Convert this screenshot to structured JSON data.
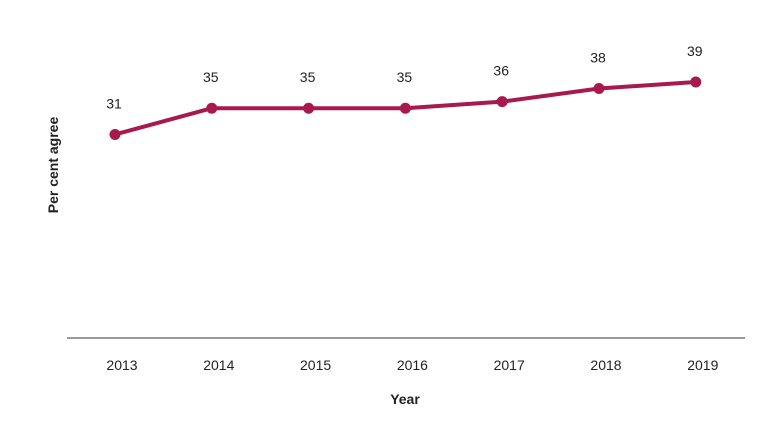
{
  "chart_data": {
    "type": "line",
    "x": [
      "2013",
      "2014",
      "2015",
      "2016",
      "2017",
      "2018",
      "2019"
    ],
    "series": [
      {
        "values": [
          31,
          35,
          35,
          35,
          36,
          38,
          39
        ],
        "color": "#a8194e"
      }
    ],
    "data_labels": [
      "31",
      "35",
      "35",
      "35",
      "36",
      "38",
      "39"
    ],
    "xlabel": "Year",
    "ylabel": "Per cent agree",
    "ylim": [
      0,
      46
    ],
    "grid": false,
    "show_y_axis": false
  }
}
